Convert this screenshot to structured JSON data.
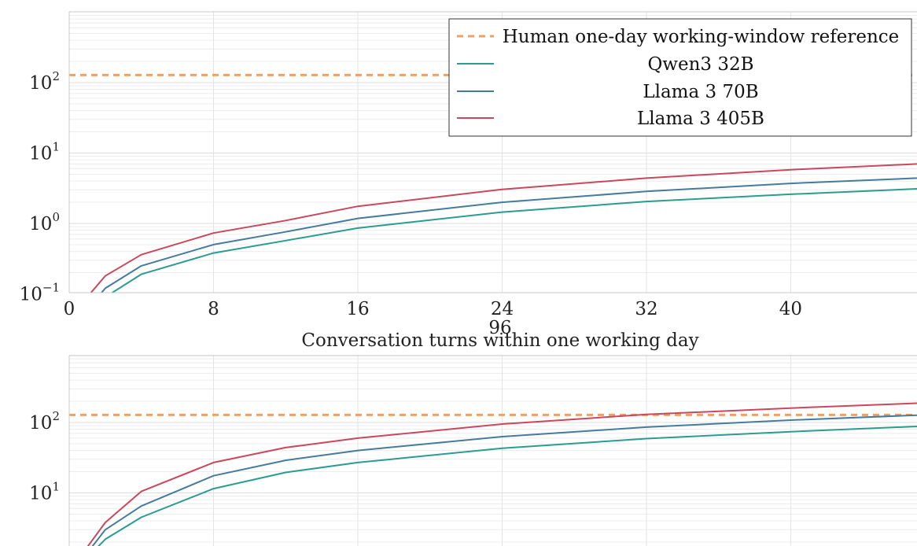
{
  "chart_data": [
    {
      "type": "line",
      "xlabel": "Conversation turns within one working day",
      "x_ticks": [
        "0",
        "8",
        "16",
        "24",
        "32",
        "40"
      ],
      "x_tick_extra": "96",
      "xlim": [
        0,
        47
      ],
      "yscale": "log",
      "ylim": [
        0.1,
        900
      ],
      "y_ticks": [
        {
          "base": "10",
          "exp": "2",
          "value": 100
        },
        {
          "base": "10",
          "exp": "1",
          "value": 10
        },
        {
          "base": "10",
          "exp": "0",
          "value": 1
        },
        {
          "base": "10",
          "exp": "−1",
          "value": 0.1
        }
      ],
      "grid": true,
      "legend": {
        "position": "top-right",
        "entries": [
          {
            "label": "Human one-day working-window reference",
            "style": "dashed",
            "color": "#f0a060"
          },
          {
            "label": "Qwen3 32B",
            "style": "solid",
            "color": "#2a9d8f"
          },
          {
            "label": "Llama 3 70B",
            "style": "solid",
            "color": "#457b9d"
          },
          {
            "label": "Llama 3 405B",
            "style": "solid",
            "color": "#c9485b"
          }
        ]
      },
      "reference": {
        "value": 128,
        "color": "#f0a060"
      },
      "series": [
        {
          "name": "Qwen3 32B",
          "color": "#2a9d8f",
          "x": [
            1,
            2,
            4,
            8,
            12,
            16,
            24,
            32,
            40,
            47
          ],
          "y": [
            0.05,
            0.09,
            0.19,
            0.38,
            0.57,
            0.86,
            1.45,
            2.05,
            2.6,
            3.1
          ]
        },
        {
          "name": "Llama 3 70B",
          "color": "#457b9d",
          "x": [
            1,
            2,
            4,
            8,
            12,
            16,
            24,
            32,
            40,
            47
          ],
          "y": [
            0.06,
            0.12,
            0.25,
            0.5,
            0.76,
            1.18,
            2.0,
            2.85,
            3.7,
            4.4
          ]
        },
        {
          "name": "Llama 3 405B",
          "color": "#c9485b",
          "x": [
            1,
            2,
            4,
            8,
            12,
            16,
            24,
            32,
            40,
            47
          ],
          "y": [
            0.09,
            0.18,
            0.36,
            0.73,
            1.1,
            1.75,
            3.05,
            4.4,
            5.8,
            7.0
          ]
        }
      ]
    },
    {
      "type": "line",
      "xlim": [
        0,
        47
      ],
      "yscale": "log",
      "ylim": [
        0.5,
        900
      ],
      "y_ticks": [
        {
          "base": "10",
          "exp": "2",
          "value": 100
        },
        {
          "base": "10",
          "exp": "1",
          "value": 10
        }
      ],
      "grid": true,
      "reference": {
        "value": 128,
        "color": "#f0a060"
      },
      "series": [
        {
          "name": "Qwen3 32B",
          "color": "#2a9d8f",
          "x": [
            1,
            2,
            4,
            8,
            12,
            16,
            24,
            32,
            40,
            47
          ],
          "y": [
            1.2,
            2.2,
            4.5,
            11.5,
            19.5,
            27,
            43,
            59,
            74,
            88
          ]
        },
        {
          "name": "Llama 3 70B",
          "color": "#457b9d",
          "x": [
            1,
            2,
            4,
            8,
            12,
            16,
            24,
            32,
            40,
            47
          ],
          "y": [
            1.4,
            3.0,
            6.5,
            17.5,
            29,
            40,
            63,
            86,
            108,
            127
          ]
        },
        {
          "name": "Llama 3 405B",
          "color": "#c9485b",
          "x": [
            1,
            2,
            4,
            8,
            12,
            16,
            24,
            32,
            40,
            47
          ],
          "y": [
            1.7,
            3.8,
            10.5,
            27,
            44,
            60,
            95,
            130,
            160,
            188
          ]
        }
      ]
    }
  ]
}
